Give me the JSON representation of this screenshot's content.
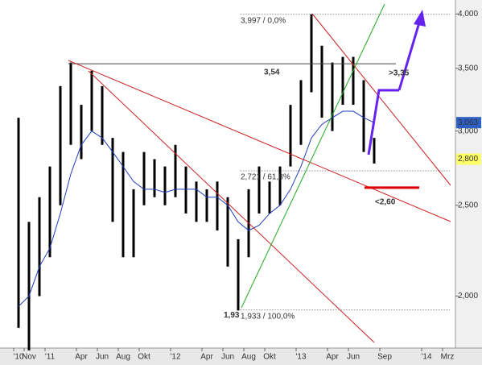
{
  "chart_data": {
    "type": "ohlc",
    "log_scale": true,
    "categories": [
      "'10",
      "Nov",
      null,
      "'11",
      null,
      null,
      "Apr",
      null,
      "Jun",
      null,
      "Aug",
      null,
      "Okt",
      null,
      null,
      "'12",
      null,
      null,
      "Apr",
      null,
      "Jun",
      null,
      "Aug",
      null,
      "Okt",
      null,
      null,
      "'13",
      null,
      null,
      "Apr",
      null,
      "Jun",
      null,
      null,
      "Sep",
      null,
      null,
      null,
      "'14",
      null,
      "Mrz"
    ],
    "series": [
      {
        "name": "High",
        "color": "#000000",
        "values": [
          3.1,
          2.4,
          2.55,
          2.75,
          3.35,
          3.55,
          3.2,
          3.48,
          3.35,
          2.95,
          2.85,
          2.6,
          2.85,
          2.8,
          2.75,
          2.9,
          2.75,
          2.65,
          2.6,
          2.65,
          2.55,
          2.3,
          2.6,
          2.75,
          2.65,
          2.75,
          3.2,
          3.4,
          3.997,
          3.7,
          3.55,
          3.6,
          3.6,
          3.4,
          2.95,
          null,
          null,
          null,
          null,
          null,
          null,
          null
        ]
      },
      {
        "name": "Low",
        "color": "#000000",
        "values": [
          1.85,
          1.75,
          2.0,
          2.2,
          2.5,
          2.9,
          2.8,
          3.0,
          2.9,
          2.4,
          2.2,
          2.2,
          2.5,
          2.55,
          2.5,
          2.55,
          2.45,
          2.4,
          2.4,
          2.35,
          2.15,
          1.93,
          2.2,
          2.45,
          2.45,
          2.5,
          2.75,
          2.9,
          3.3,
          3.1,
          3.0,
          3.2,
          3.2,
          2.85,
          2.77,
          null,
          null,
          null,
          null,
          null,
          null,
          null
        ]
      },
      {
        "name": "MA",
        "color": "#1f3fbf",
        "values": [
          1.95,
          2.0,
          2.15,
          2.25,
          2.45,
          2.7,
          2.9,
          3.0,
          2.95,
          2.85,
          2.75,
          2.65,
          2.6,
          2.6,
          2.58,
          2.6,
          2.6,
          2.6,
          2.55,
          2.55,
          2.5,
          2.4,
          2.35,
          2.38,
          2.45,
          2.5,
          2.6,
          2.75,
          2.95,
          3.05,
          3.1,
          3.15,
          3.15,
          3.1,
          3.063,
          null,
          null,
          null,
          null,
          null,
          null,
          null
        ]
      }
    ],
    "ylim": [
      1.76,
      4.14
    ],
    "yticks": [
      {
        "value": 2,
        "label": "2,000"
      },
      {
        "value": 2.5,
        "label": "2,500"
      },
      {
        "value": 3,
        "label": "3,000"
      },
      {
        "value": 3.5,
        "label": "3,500"
      },
      {
        "value": 4,
        "label": "4,000"
      }
    ],
    "markers": [
      {
        "value": 3.063,
        "label": "3,063",
        "color": "#2e5fc4"
      },
      {
        "value": 2.8,
        "label": "2,800",
        "color": "#ffff66"
      }
    ],
    "levels": [
      {
        "value": 3.997,
        "label": "3,997 / 0,0%"
      },
      {
        "value": 2.721,
        "label": "2,721 / 61,8%"
      },
      {
        "value": 1.933,
        "label": "1,933 / 100,0%"
      }
    ],
    "annotations": [
      {
        "value": 3.54,
        "label": "3,54",
        "color": "#555555"
      },
      {
        "value": 1.93,
        "label": "1,93",
        "color": "#555555"
      },
      {
        "value": 3.35,
        "label": ">3,35",
        "color": "#3333cc"
      },
      {
        "value": 2.6,
        "label": "<2,60",
        "color": "#dd0000"
      }
    ]
  }
}
